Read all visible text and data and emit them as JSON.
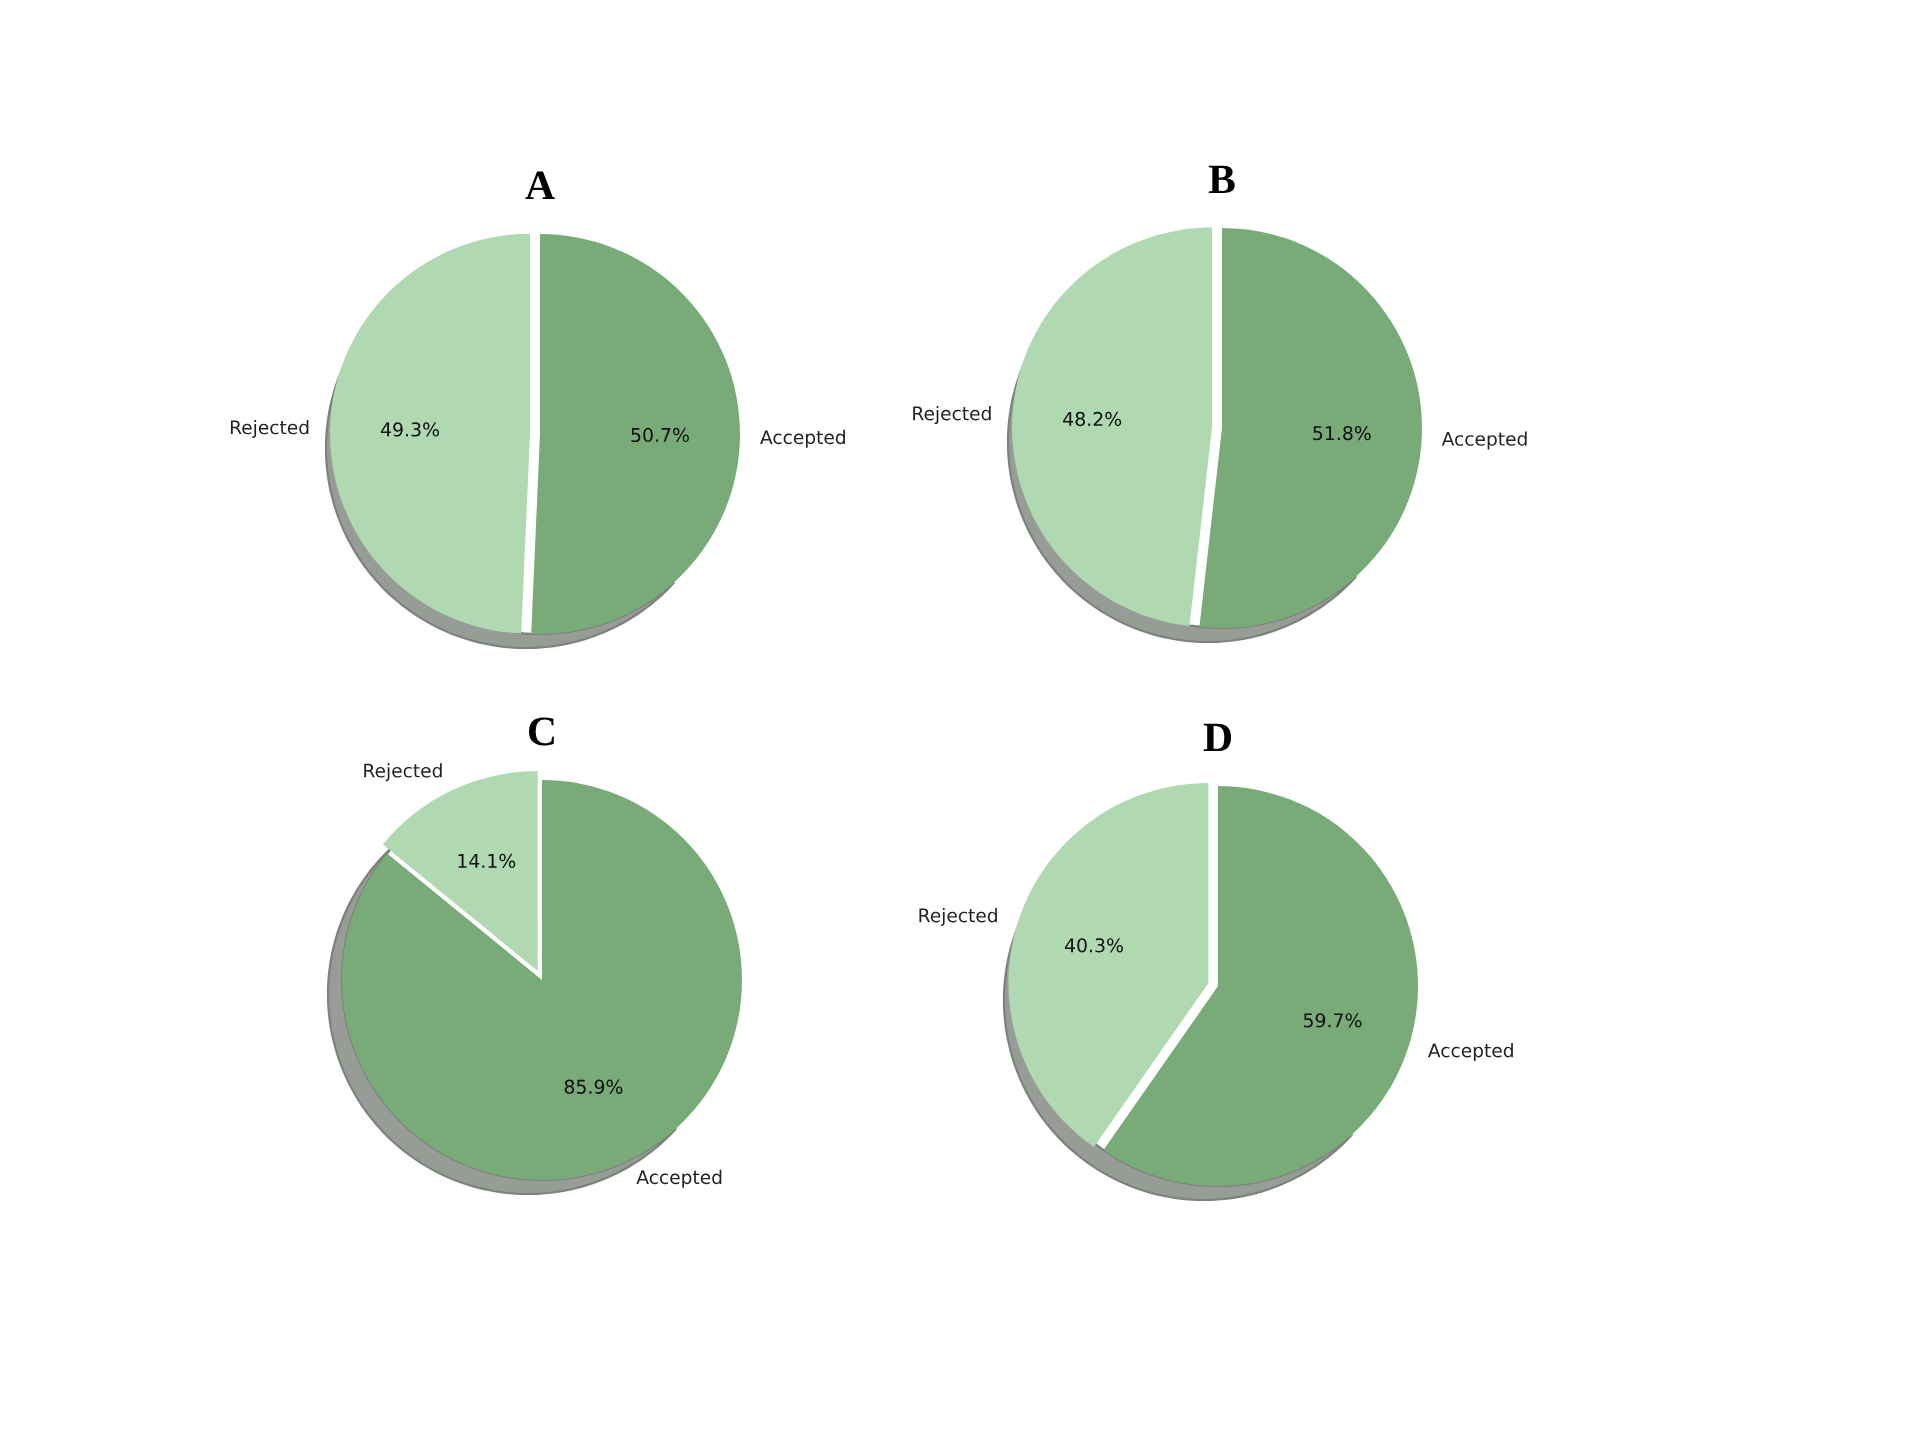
{
  "chart_data": [
    {
      "type": "pie",
      "title": "A",
      "categories": [
        "Rejected",
        "Accepted"
      ],
      "values": [
        49.3,
        50.7
      ],
      "colors": [
        "#b0d9b1",
        "#79ab78"
      ],
      "value_labels": [
        "49.3%",
        "50.7%"
      ]
    },
    {
      "type": "pie",
      "title": "B",
      "categories": [
        "Rejected",
        "Accepted"
      ],
      "values": [
        48.2,
        51.8
      ],
      "colors": [
        "#b0d9b1",
        "#79ab78"
      ],
      "value_labels": [
        "48.2%",
        "51.8%"
      ]
    },
    {
      "type": "pie",
      "title": "C",
      "categories": [
        "Rejected",
        "Accepted"
      ],
      "values": [
        14.1,
        85.9
      ],
      "colors": [
        "#b0d9b1",
        "#79ab78"
      ],
      "value_labels": [
        "14.1%",
        "85.9%"
      ]
    },
    {
      "type": "pie",
      "title": "D",
      "categories": [
        "Rejected",
        "Accepted"
      ],
      "values": [
        40.3,
        59.7
      ],
      "colors": [
        "#b0d9b1",
        "#79ab78"
      ],
      "value_labels": [
        "40.3%",
        "59.7%"
      ]
    }
  ]
}
